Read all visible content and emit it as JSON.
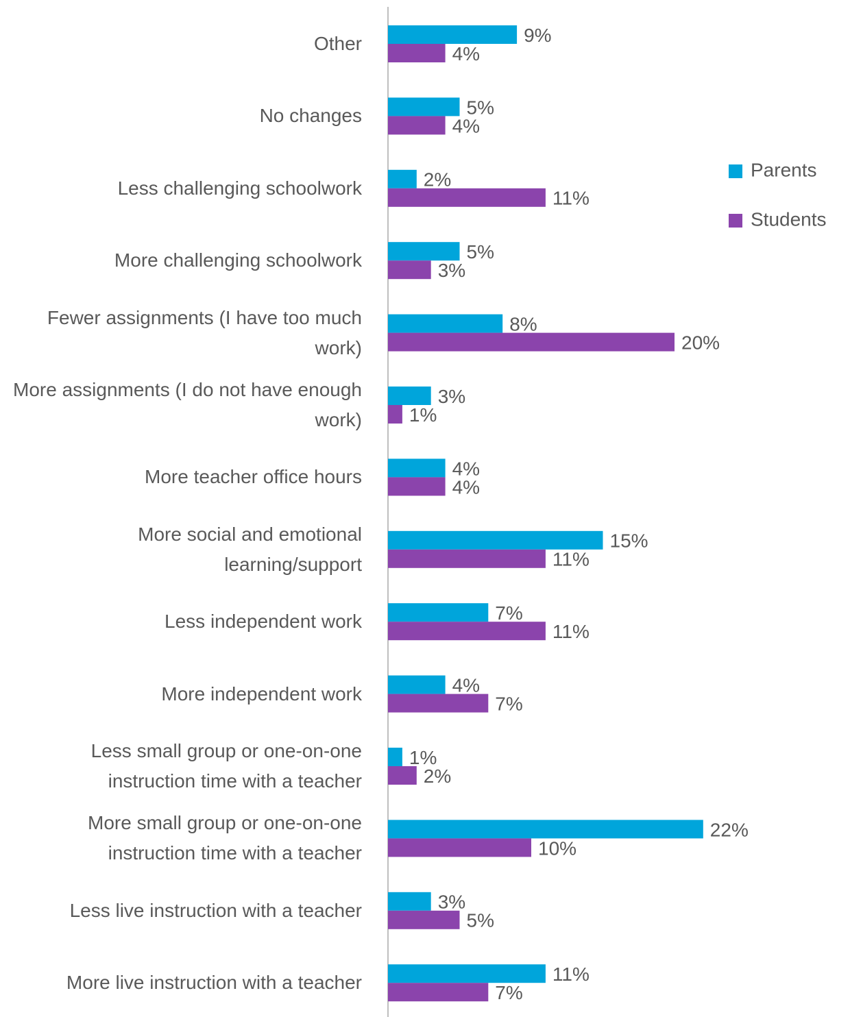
{
  "chart_data": {
    "type": "bar",
    "orientation": "horizontal",
    "categories": [
      "Other",
      "No changes",
      "Less challenging schoolwork",
      "More challenging schoolwork",
      "Fewer assignments (I have too much work)",
      "More assignments (I do not have enough work)",
      "More teacher office hours",
      "More social and emotional learning/support",
      "Less independent work",
      "More independent work",
      "Less small group or one-on-one instruction time with a teacher",
      "More small group or one-on-one instruction time with a teacher",
      "Less live instruction with a teacher",
      "More live instruction with a teacher"
    ],
    "series": [
      {
        "name": "Parents",
        "color": "#00a5db",
        "values": [
          9,
          5,
          2,
          5,
          8,
          3,
          4,
          15,
          7,
          4,
          1,
          22,
          3,
          11
        ],
        "value_labels": [
          "9%",
          "5%",
          "2%",
          "5%",
          "8%",
          "3%",
          "4%",
          "15%",
          "7%",
          "4%",
          "1%",
          "22%",
          "3%",
          "11%"
        ]
      },
      {
        "name": "Students",
        "color": "#8b44ac",
        "values": [
          4,
          4,
          11,
          3,
          20,
          1,
          4,
          11,
          11,
          7,
          2,
          10,
          5,
          7
        ],
        "value_labels": [
          "4%",
          "4%",
          "11%",
          "3%",
          "20%",
          "1%",
          "4%",
          "11%",
          "11%",
          "7%",
          "2%",
          "10%",
          "5%",
          "7%"
        ]
      }
    ],
    "legend": "right"
  }
}
